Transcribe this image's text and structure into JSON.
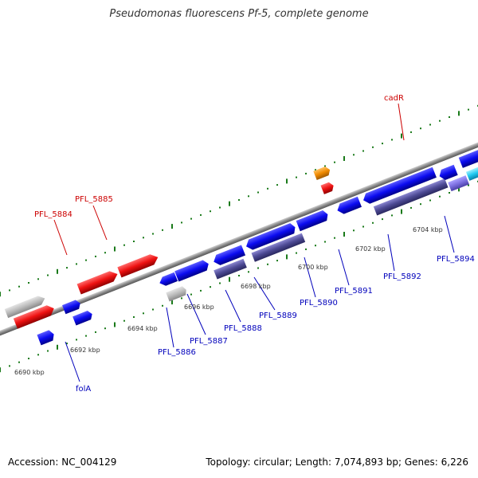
{
  "title": "Pseudomonas fluorescens Pf-5, complete genome",
  "footer": {
    "accession": "Accession: NC_004129",
    "summary": "Topology: circular; Length: 7,074,893 bp; Genes: 6,226"
  },
  "colors": {
    "forward_cds": "#0b0bf0",
    "reverse_cds": "#ee1111",
    "other": "#bbbbbb",
    "dark_purple": "#4d4a94",
    "light_purple": "#7c6fe0",
    "cyan": "#20c8f0",
    "orange": "#f08a00",
    "backbone": "#888888",
    "tick": "#1a7a1a",
    "label_blue": "#0000bb",
    "label_red": "#cc0000"
  },
  "scale_labels": [
    "6690 kbp",
    "6692 kbp",
    "6694 kbp",
    "6696 kbp",
    "6698 kbp",
    "6700 kbp",
    "6702 kbp",
    "6704 kbp"
  ],
  "gene_labels": [
    "cadR",
    "PFL_5885",
    "PFL_5884",
    "folA",
    "PFL_5886",
    "PFL_5887",
    "PFL_5888",
    "PFL_5889",
    "PFL_5890",
    "PFL_5891",
    "PFL_5892",
    "PFL_5894"
  ]
}
